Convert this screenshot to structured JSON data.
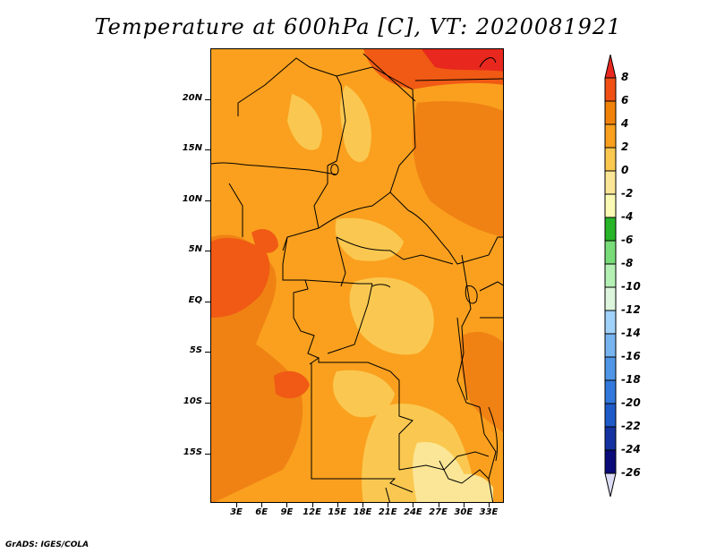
{
  "title": "Temperature at 600hPa [C], VT: 2020081921",
  "credit": "GrADS: IGES/COLA",
  "axes": {
    "y_labels": [
      "20N",
      "15N",
      "10N",
      "5N",
      "EQ",
      "5S",
      "10S",
      "15S"
    ],
    "x_labels": [
      "3E",
      "6E",
      "9E",
      "12E",
      "15E",
      "18E",
      "21E",
      "24E",
      "27E",
      "30E",
      "33E"
    ]
  },
  "colorbar": {
    "labels": [
      "8",
      "6",
      "4",
      "2",
      "0",
      "-2",
      "-4",
      "-6",
      "-8",
      "-10",
      "-12",
      "-14",
      "-16",
      "-18",
      "-20",
      "-22",
      "-24",
      "-26"
    ],
    "colors": [
      "#e8281e",
      "#f05014",
      "#f0820a",
      "#faa01e",
      "#fac850",
      "#fae696",
      "#fafab4",
      "#28b428",
      "#78dc78",
      "#b4f0b4",
      "#dcf5dc",
      "#a0d2fa",
      "#78b4f0",
      "#5096e6",
      "#3278dc",
      "#1e5ac8",
      "#1432a0",
      "#0a0a78",
      "#dcdcf5"
    ]
  },
  "map_colors": {
    "t4": "#faa01e",
    "t2": "#fac850",
    "t6": "#f08214",
    "t8": "#f05a14",
    "t10": "#e8281e",
    "t0": "#fae696"
  }
}
